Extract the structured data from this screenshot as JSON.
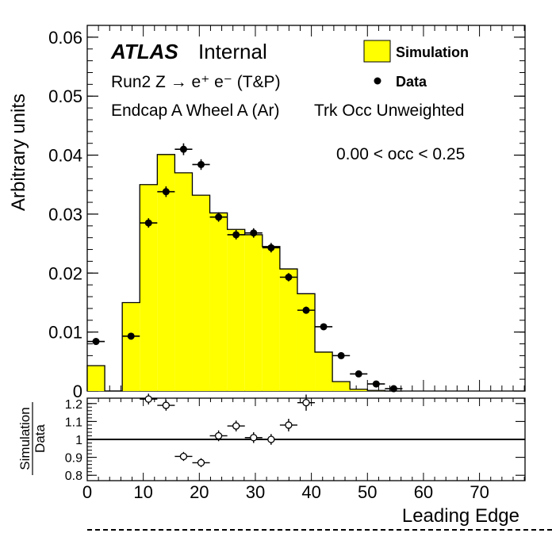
{
  "chart_data": [
    {
      "type": "bar",
      "panel": "main",
      "xlabel": "Leading Edge",
      "ylabel": "Arbitrary units",
      "xlim": [
        0,
        78.125
      ],
      "ylim": [
        0,
        0.062
      ],
      "bin_width": 3.125,
      "x_ticks": [
        "0",
        "10",
        "20",
        "30",
        "40",
        "50",
        "60",
        "70"
      ],
      "y_ticks": [
        "0",
        "0.01",
        "0.02",
        "0.03",
        "0.04",
        "0.05",
        "0.06"
      ],
      "series": [
        {
          "name": "Simulation",
          "kind": "histogram",
          "color": "#ffff00",
          "bin_edges": [
            0,
            3.125,
            6.25,
            9.375,
            12.5,
            15.625,
            18.75,
            21.875,
            25,
            28.125,
            31.25,
            34.375,
            37.5,
            40.625,
            43.75,
            46.875,
            50,
            53.125,
            56.25
          ],
          "values": [
            0.0043,
            0.0,
            0.015,
            0.035,
            0.0401,
            0.037,
            0.0332,
            0.0302,
            0.0274,
            0.0265,
            0.0245,
            0.0207,
            0.0165,
            0.0066,
            0.0016,
            0.0003,
            0.0001,
            0.0
          ]
        },
        {
          "name": "Data",
          "kind": "points",
          "color": "#000000",
          "x": [
            1.5625,
            7.8125,
            10.9375,
            14.0625,
            17.1875,
            20.3125,
            23.4375,
            26.5625,
            29.6875,
            32.8125,
            35.9375,
            39.0625,
            42.1875,
            45.3125,
            48.4375,
            51.5625,
            54.6875
          ],
          "values": [
            0.0084,
            0.0093,
            0.0285,
            0.0338,
            0.041,
            0.0384,
            0.0295,
            0.0265,
            0.0268,
            0.0243,
            0.0193,
            0.0137,
            0.0109,
            0.006,
            0.0029,
            0.0012,
            0.0004
          ],
          "errors": [
            0.0004,
            0.0004,
            0.0008,
            0.0009,
            0.001,
            0.0009,
            0.0008,
            0.0008,
            0.0008,
            0.0008,
            0.0007,
            0.0006,
            0.0005,
            0.0004,
            0.0003,
            0.0002,
            0.0001
          ]
        }
      ]
    },
    {
      "type": "scatter",
      "panel": "ratio",
      "ylabel_top": "Simulation",
      "ylabel_bottom": "Data",
      "ylim": [
        0.77,
        1.23
      ],
      "y_ticks": [
        "0.8",
        "0.9",
        "1",
        "1.1",
        "1.2"
      ],
      "reference_line": 1.0,
      "x": [
        10.9375,
        14.0625,
        17.1875,
        20.3125,
        23.4375,
        26.5625,
        29.6875,
        32.8125,
        35.9375,
        39.0625
      ],
      "values": [
        1.225,
        1.19,
        0.905,
        0.87,
        1.02,
        1.075,
        1.01,
        1.0,
        1.08,
        1.205
      ],
      "errors": [
        0.03,
        0.03,
        0.025,
        0.025,
        0.03,
        0.03,
        0.03,
        0.03,
        0.035,
        0.045
      ]
    }
  ],
  "labels": {
    "atlas": "ATLAS",
    "internal": "Internal",
    "run": "Run2 Z → e⁺ e⁻ (T&P)",
    "region": "Endcap A Wheel A (Ar)",
    "occupancy_type": "Trk Occ Unweighted",
    "occupancy_range": "0.00 < occ < 0.25"
  }
}
